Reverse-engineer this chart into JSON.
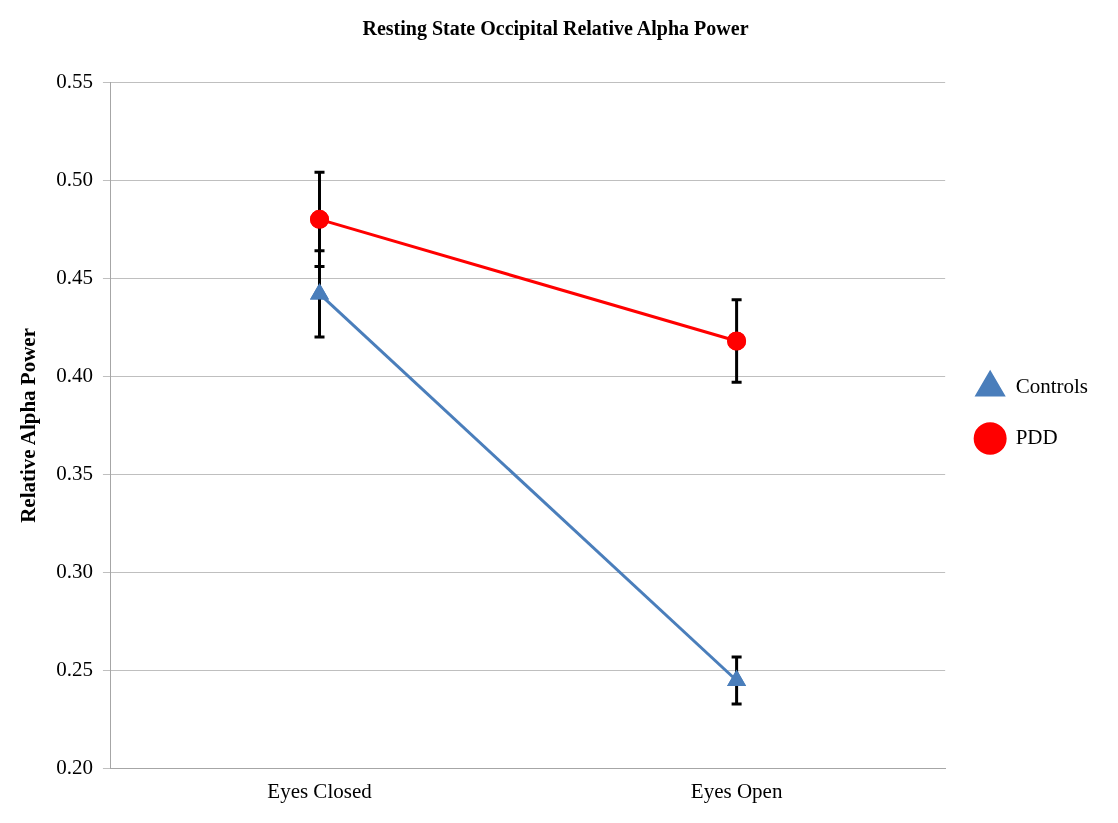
{
  "chart_data": {
    "type": "line",
    "title": "Resting State Occipital Relative Alpha Power",
    "ylabel": "Relative Alpha Power",
    "categories": [
      "Eyes Closed",
      "Eyes Open"
    ],
    "series": [
      {
        "name": "Controls",
        "color": "#4a7ebb",
        "marker": "triangle",
        "values": [
          0.442,
          0.245
        ],
        "errors": [
          0.022,
          0.012
        ]
      },
      {
        "name": "PDD",
        "color": "#ff0000",
        "marker": "circle",
        "values": [
          0.48,
          0.418
        ],
        "errors": [
          0.024,
          0.021
        ]
      }
    ],
    "ylim": [
      0.2,
      0.55
    ],
    "yticks": [
      {
        "value": 0.2,
        "label": "0.20"
      },
      {
        "value": 0.25,
        "label": "0.25"
      },
      {
        "value": 0.3,
        "label": "0.30"
      },
      {
        "value": 0.35,
        "label": "0.35"
      },
      {
        "value": 0.4,
        "label": "0.40"
      },
      {
        "value": 0.45,
        "label": "0.45"
      },
      {
        "value": 0.5,
        "label": "0.50"
      },
      {
        "value": 0.55,
        "label": "0.55"
      }
    ],
    "grid": "y",
    "legend": "right"
  }
}
